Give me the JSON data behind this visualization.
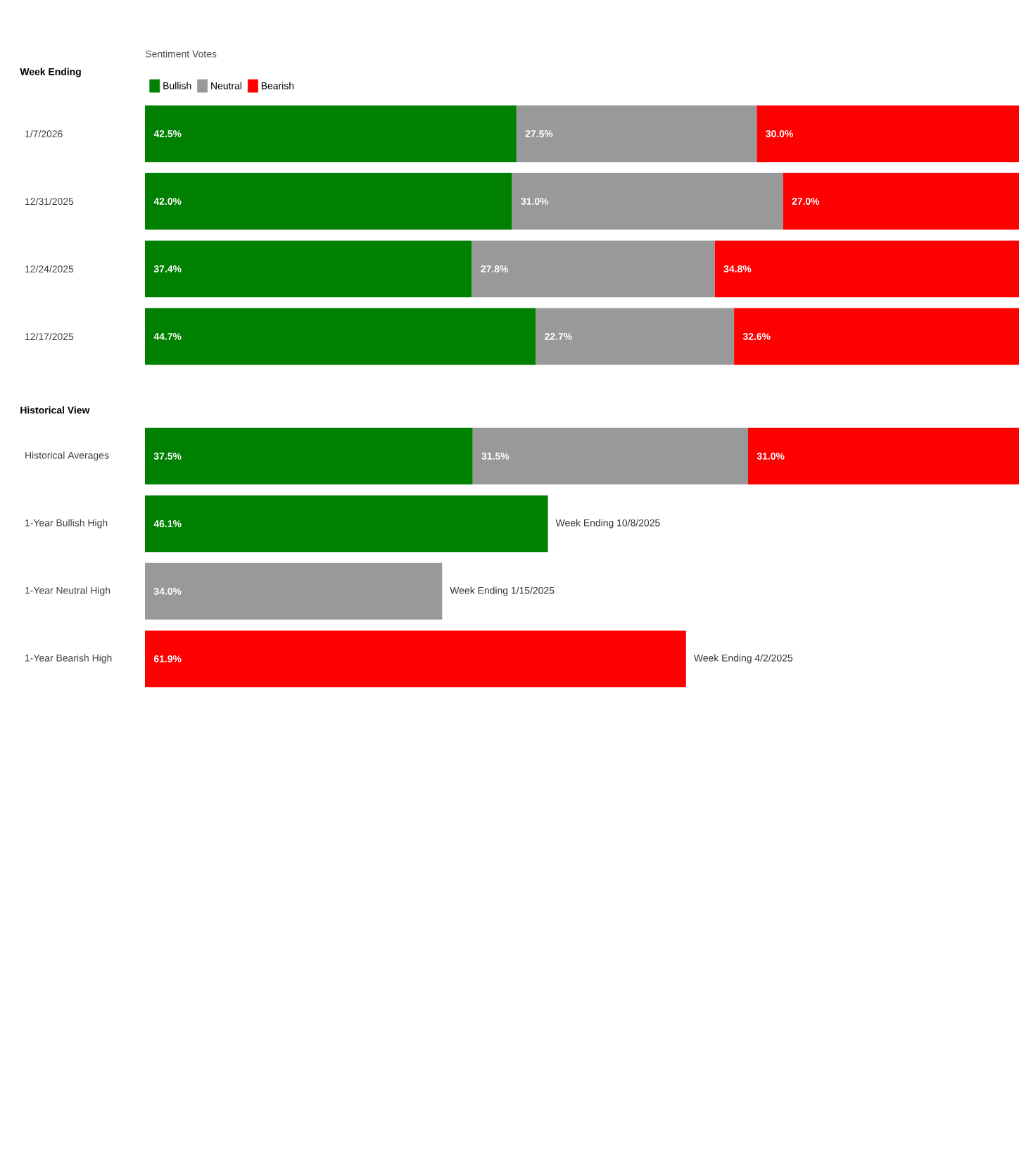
{
  "chart_data": [
    {
      "type": "bar",
      "orientation": "horizontal",
      "stacked": true,
      "ylabel": "Week Ending",
      "legend_title": "Sentiment Votes",
      "legend": "top left",
      "tick_labels": "y",
      "xlim": [
        0,
        100
      ],
      "categories": [
        "1/7/2026",
        "12/31/2025",
        "12/24/2025",
        "12/17/2025"
      ],
      "series": [
        {
          "name": "Bullish",
          "color": "#008000",
          "values": [
            42.5,
            42.0,
            37.4,
            44.7
          ],
          "value_labels": [
            "42.5%",
            "42.0%",
            "37.4%",
            "44.7%"
          ]
        },
        {
          "name": "Neutral",
          "color": "#999999",
          "values": [
            27.5,
            31.0,
            27.8,
            22.7
          ],
          "value_labels": [
            "27.5%",
            "31.0%",
            "27.8%",
            "22.7%"
          ]
        },
        {
          "name": "Bearish",
          "color": "#ff0000",
          "values": [
            30.0,
            27.0,
            34.8,
            32.6
          ],
          "value_labels": [
            "30.0%",
            "27.0%",
            "34.8%",
            "32.6%"
          ]
        }
      ]
    },
    {
      "type": "bar",
      "orientation": "horizontal",
      "stacked": true,
      "ylabel": "Historical View",
      "tick_labels": "y",
      "xlim": [
        0,
        100
      ],
      "categories": [
        "Historical Averages",
        "1-Year Bullish High",
        "1-Year Neutral High",
        "1-Year Bearish High"
      ],
      "series": [
        {
          "color": "#008000",
          "values": [
            37.5,
            46.1,
            null,
            null
          ],
          "value_labels": [
            "37.5%",
            "46.1%",
            null,
            null
          ]
        },
        {
          "color": "#999999",
          "values": [
            31.5,
            null,
            34.0,
            null
          ],
          "value_labels": [
            "31.5%",
            null,
            "34.0%",
            null
          ]
        },
        {
          "color": "#ff0000",
          "values": [
            31.0,
            null,
            null,
            61.9
          ],
          "value_labels": [
            "31.0%",
            null,
            null,
            "61.9%"
          ]
        }
      ],
      "annotations": [
        {
          "text": "Week Ending 10/8/2025",
          "x": 46.1,
          "y": "1-Year Bullish High"
        },
        {
          "text": "Week Ending 1/15/2025",
          "x": 34.0,
          "y": "1-Year Neutral High"
        },
        {
          "text": "Week Ending 4/2/2025",
          "x": 61.9,
          "y": "1-Year Bearish High"
        }
      ]
    }
  ]
}
